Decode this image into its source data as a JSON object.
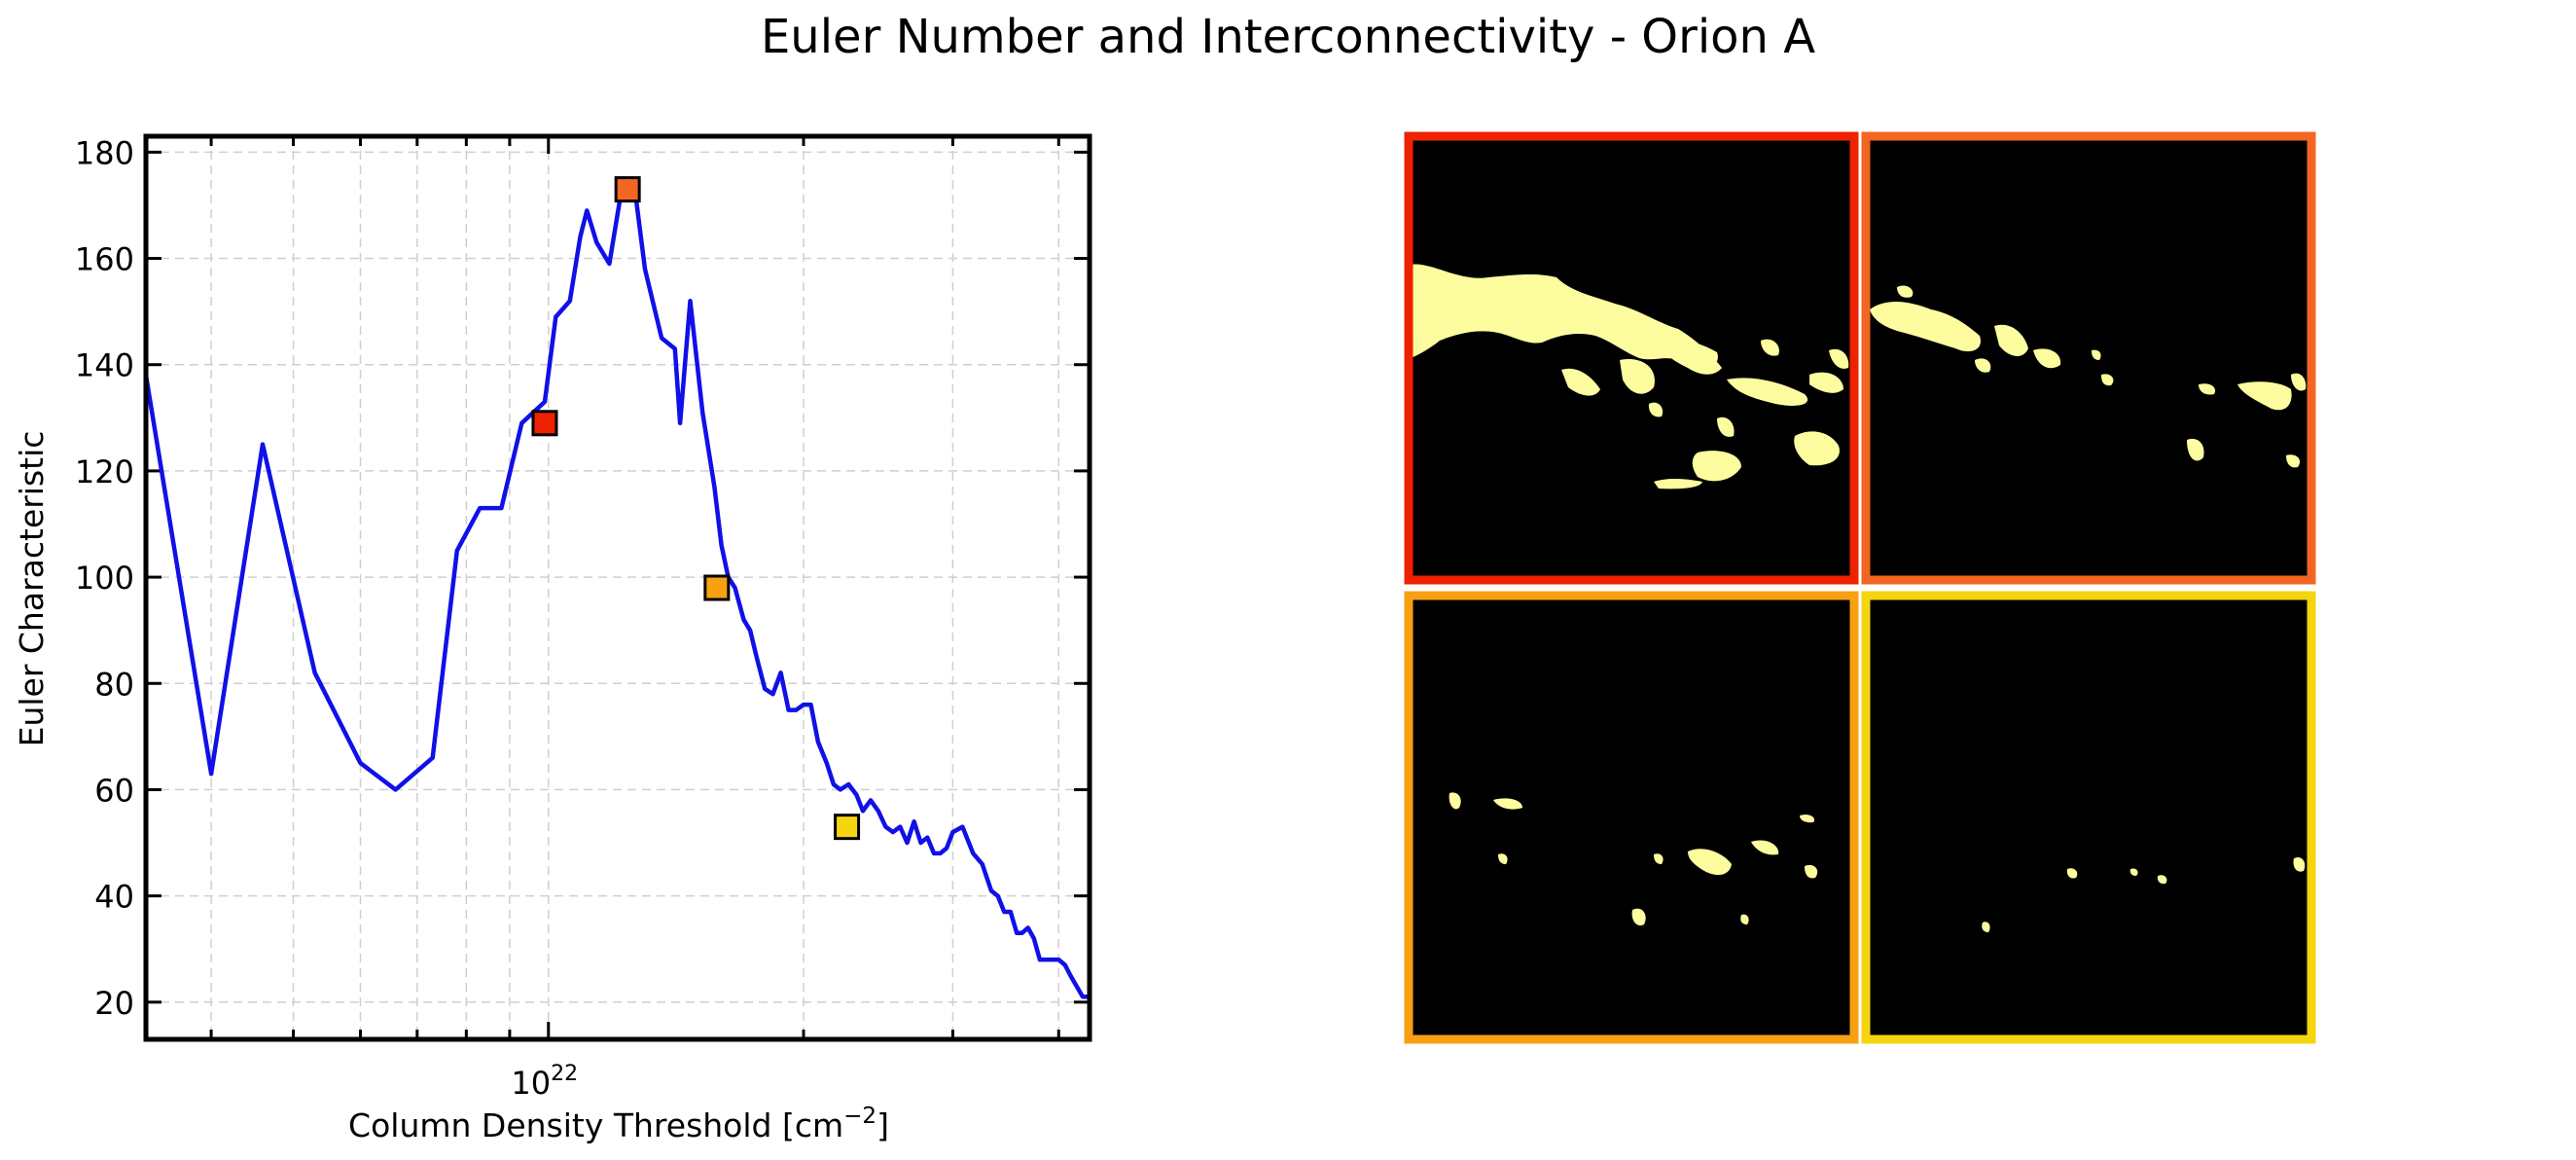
{
  "title": "Euler Number and Interconnectivity - Orion A",
  "chart_data": {
    "type": "line",
    "title": "",
    "xlabel": "Column Density Threshold [cm$^{-2}$]",
    "xlabel_main": "Column Density Threshold [cm",
    "xlabel_sup": "−2",
    "xlabel_end": "]",
    "ylabel": "Euler Characteristic",
    "xscale": "log",
    "xlim": [
      3.35e+21,
      4.35e+22
    ],
    "ylim": [
      13,
      183
    ],
    "yticks": [
      20,
      40,
      60,
      80,
      100,
      120,
      140,
      160,
      180
    ],
    "xtick_major": {
      "base": "10",
      "exp": "22",
      "value": 1e+22
    },
    "grid": true,
    "series": [
      {
        "color": "#1010e8",
        "x": [
          3.35e+21,
          4e+21,
          4.6e+21,
          5.3e+21,
          6e+21,
          6.6e+21,
          7.3e+21,
          7.8e+21,
          8.3e+21,
          8.8e+21,
          9.3e+21,
          9.9e+21,
          1.02e+22,
          1.06e+22,
          1.09e+22,
          1.11e+22,
          1.14e+22,
          1.18e+22,
          1.22e+22,
          1.26e+22,
          1.3e+22,
          1.36e+22,
          1.41e+22,
          1.43e+22,
          1.47e+22,
          1.52e+22,
          1.57e+22,
          1.6e+22,
          1.63e+22,
          1.66e+22,
          1.7e+22,
          1.73e+22,
          1.76e+22,
          1.8e+22,
          1.84e+22,
          1.88e+22,
          1.92e+22,
          1.96e+22,
          2e+22,
          2.04e+22,
          2.08e+22,
          2.13e+22,
          2.17e+22,
          2.21e+22,
          2.26e+22,
          2.31e+22,
          2.35e+22,
          2.4e+22,
          2.45e+22,
          2.5e+22,
          2.55e+22,
          2.6e+22,
          2.65e+22,
          2.7e+22,
          2.75e+22,
          2.8e+22,
          2.85e+22,
          2.9e+22,
          2.95e+22,
          3e+22,
          3.08e+22,
          3.17e+22,
          3.25e+22,
          3.33e+22,
          3.39e+22,
          3.45e+22,
          3.51e+22,
          3.57e+22,
          3.62e+22,
          3.68e+22,
          3.74e+22,
          3.8e+22,
          3.87e+22,
          3.94e+22,
          4e+22,
          4.07e+22,
          4.13e+22,
          4.2e+22,
          4.27e+22,
          4.35e+22
        ],
        "y": [
          138,
          63,
          125,
          82,
          65,
          60,
          66,
          105,
          113,
          113,
          129,
          133,
          149,
          152,
          164,
          169,
          163,
          159,
          173,
          175,
          158,
          145,
          143,
          129,
          152,
          131,
          117,
          106,
          100,
          98,
          92,
          90,
          85,
          79,
          78,
          82,
          75,
          75,
          76,
          76,
          69,
          65,
          61,
          60,
          61,
          59,
          56,
          58,
          56,
          53,
          52,
          53,
          50,
          54,
          50,
          51,
          48,
          48,
          49,
          52,
          53,
          48,
          46,
          41,
          40,
          37,
          37,
          33,
          33,
          34,
          32,
          28,
          28,
          28,
          28,
          27,
          25,
          23,
          21,
          21
        ]
      }
    ],
    "markers": [
      {
        "x": 9.9e+21,
        "y": 129,
        "color": "#ee2200"
      },
      {
        "x": 1.24e+22,
        "y": 173,
        "color": "#f26522"
      },
      {
        "x": 1.58e+22,
        "y": 98,
        "color": "#f7a011"
      },
      {
        "x": 2.25e+22,
        "y": 53,
        "color": "#f5d50f"
      }
    ]
  },
  "panels": [
    {
      "border": "#ee2200"
    },
    {
      "border": "#f26522"
    },
    {
      "border": "#f7a011"
    },
    {
      "border": "#f5d50f"
    }
  ],
  "colors": {
    "mask": "#fdfd9f",
    "background": "#000000"
  }
}
